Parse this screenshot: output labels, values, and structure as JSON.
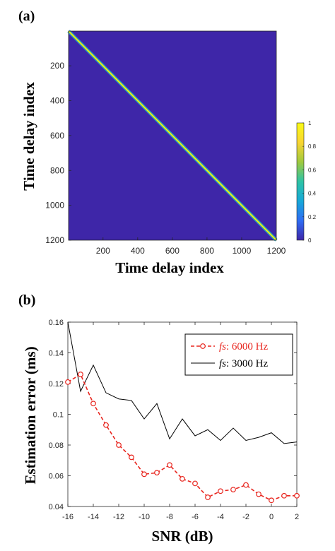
{
  "panels": {
    "a_label": "(a)",
    "b_label": "(b)"
  },
  "chart_data": [
    {
      "type": "heatmap",
      "title": "",
      "xlabel": "Time delay index",
      "ylabel": "Time delay index",
      "xlim": [
        1,
        1200
      ],
      "ylim": [
        1,
        1200
      ],
      "xticks": [
        200,
        400,
        600,
        800,
        1000,
        1200
      ],
      "yticks": [
        200,
        400,
        600,
        800,
        1000,
        1200
      ],
      "description_values": "identity-like matrix: value 1 on diagonal, ~0 elsewhere",
      "diagonal_value": 1,
      "background_value": 0,
      "colorbar": {
        "range": [
          0,
          1
        ],
        "ticks": [
          "0",
          "0.2",
          "0.4",
          "0.6",
          "0.8",
          "1"
        ],
        "colors": [
          "#3e26a8",
          "#2f6cf3",
          "#17a8d8",
          "#2ec3a6",
          "#9fc93e",
          "#f9d532",
          "#f9fb15"
        ]
      },
      "background_color": "#3e26a8"
    },
    {
      "type": "line",
      "title": "",
      "xlabel": "SNR (dB)",
      "ylabel": "Estimation error (ms)",
      "xlim": [
        -16,
        2
      ],
      "ylim": [
        0.04,
        0.16
      ],
      "xticks": [
        "-16",
        "-14",
        "-12",
        "-10",
        "-8",
        "-6",
        "-4",
        "-2",
        "0",
        "2"
      ],
      "yticks": [
        "0.04",
        "0.06",
        "0.08",
        "0.1",
        "0.12",
        "0.14",
        "0.16"
      ],
      "legend_position": "top-right",
      "series": [
        {
          "name": "fs: 6000 Hz",
          "name_italic": "fs",
          "name_rest": ": 6000 Hz",
          "color": "#e8261f",
          "style": "dashed-circle",
          "x": [
            -16,
            -15,
            -14,
            -13,
            -12,
            -11,
            -10,
            -9,
            -8,
            -7,
            -6,
            -5,
            -4,
            -3,
            -2,
            -1,
            0,
            1,
            2
          ],
          "y": [
            0.121,
            0.126,
            0.107,
            0.093,
            0.08,
            0.072,
            0.061,
            0.062,
            0.067,
            0.058,
            0.055,
            0.046,
            0.05,
            0.051,
            0.054,
            0.048,
            0.044,
            0.047,
            0.047
          ]
        },
        {
          "name": "fs: 3000 Hz",
          "name_italic": "fs",
          "name_rest": ": 3000 Hz",
          "color": "#000000",
          "style": "solid",
          "x": [
            -16,
            -15,
            -14,
            -13,
            -12,
            -11,
            -10,
            -9,
            -8,
            -7,
            -6,
            -5,
            -4,
            -3,
            -2,
            -1,
            0,
            1,
            2
          ],
          "y": [
            0.16,
            0.115,
            0.132,
            0.114,
            0.11,
            0.109,
            0.097,
            0.107,
            0.084,
            0.097,
            0.086,
            0.09,
            0.083,
            0.091,
            0.083,
            0.085,
            0.088,
            0.081,
            0.082
          ]
        }
      ]
    }
  ]
}
